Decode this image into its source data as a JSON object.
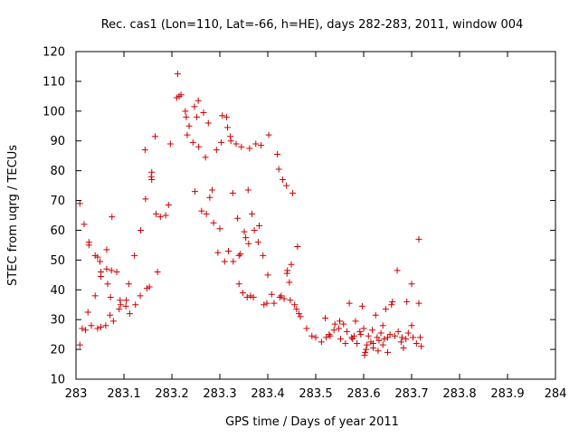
{
  "chart_data": {
    "type": "scatter",
    "title": "Rec. cas1 (Lon=110, Lat=-66, h=HE), days 282-283, 2011, window 004",
    "xlabel": "GPS time / Days of year 2011",
    "ylabel": "STEC from uqrg / TECUs",
    "xlim": [
      283,
      284
    ],
    "ylim": [
      10,
      120
    ],
    "xticks": [
      "283",
      "283.1",
      "283.2",
      "283.3",
      "283.4",
      "283.5",
      "283.6",
      "283.7",
      "283.8",
      "283.9",
      "284"
    ],
    "yticks": [
      "10",
      "20",
      "30",
      "40",
      "50",
      "60",
      "70",
      "80",
      "90",
      "100",
      "110",
      "120"
    ],
    "grid": false,
    "legend": "none",
    "marker": "+",
    "color": "#cc0000",
    "series": [
      {
        "points": [
          [
            283.008,
            21.5
          ],
          [
            283.008,
            69
          ],
          [
            283.017,
            62
          ],
          [
            283.013,
            27
          ],
          [
            283.02,
            26.5
          ],
          [
            283.025,
            32.5
          ],
          [
            283.027,
            55
          ],
          [
            283.027,
            56
          ],
          [
            283.032,
            28
          ],
          [
            283.04,
            38
          ],
          [
            283.04,
            51.5
          ],
          [
            283.045,
            51
          ],
          [
            283.045,
            27
          ],
          [
            283.052,
            27.5
          ],
          [
            283.05,
            49.5
          ],
          [
            283.052,
            44.5
          ],
          [
            283.052,
            46
          ],
          [
            283.062,
            28
          ],
          [
            283.064,
            47
          ],
          [
            283.064,
            53.5
          ],
          [
            283.066,
            42
          ],
          [
            283.071,
            31.5
          ],
          [
            283.072,
            37.5
          ],
          [
            283.075,
            64.5
          ],
          [
            283.074,
            46.5
          ],
          [
            283.078,
            29.5
          ],
          [
            283.085,
            46
          ],
          [
            283.09,
            33.5
          ],
          [
            283.092,
            36.5
          ],
          [
            283.093,
            35
          ],
          [
            283.104,
            34.5
          ],
          [
            283.105,
            36.5
          ],
          [
            283.11,
            42
          ],
          [
            283.112,
            32
          ],
          [
            283.122,
            51.5
          ],
          [
            283.124,
            35
          ],
          [
            283.134,
            38
          ],
          [
            283.135,
            60
          ],
          [
            283.144,
            87
          ],
          [
            283.145,
            70.5
          ],
          [
            283.148,
            40.5
          ],
          [
            283.153,
            41
          ],
          [
            283.157,
            78
          ],
          [
            283.158,
            79.5
          ],
          [
            283.158,
            77
          ],
          [
            283.165,
            91.5
          ],
          [
            283.167,
            65.5
          ],
          [
            283.17,
            46
          ],
          [
            283.176,
            64.5
          ],
          [
            283.187,
            65
          ],
          [
            283.193,
            68.5
          ],
          [
            283.197,
            89
          ],
          [
            283.21,
            104.5
          ],
          [
            283.212,
            112.5
          ],
          [
            283.215,
            105
          ],
          [
            283.219,
            105.5
          ],
          [
            283.228,
            100
          ],
          [
            283.23,
            98
          ],
          [
            283.232,
            92
          ],
          [
            283.236,
            95
          ],
          [
            283.244,
            89.5
          ],
          [
            283.247,
            101.5
          ],
          [
            283.248,
            73
          ],
          [
            283.252,
            98
          ],
          [
            283.255,
            103.5
          ],
          [
            283.256,
            88
          ],
          [
            283.262,
            66.5
          ],
          [
            283.266,
            99.5
          ],
          [
            283.27,
            84.5
          ],
          [
            283.272,
            65.5
          ],
          [
            283.276,
            96
          ],
          [
            283.279,
            71
          ],
          [
            283.284,
            73.5
          ],
          [
            283.287,
            62.5
          ],
          [
            283.293,
            87
          ],
          [
            283.296,
            52.5
          ],
          [
            283.3,
            60.5
          ],
          [
            283.303,
            89.5
          ],
          [
            283.305,
            98.5
          ],
          [
            283.31,
            49.5
          ],
          [
            283.314,
            98
          ],
          [
            283.316,
            94.5
          ],
          [
            283.318,
            53
          ],
          [
            283.322,
            91.5
          ],
          [
            283.323,
            90
          ],
          [
            283.327,
            72.5
          ],
          [
            283.328,
            49.5
          ],
          [
            283.334,
            89
          ],
          [
            283.337,
            64
          ],
          [
            283.34,
            51.5
          ],
          [
            283.34,
            42
          ],
          [
            283.343,
            52
          ],
          [
            283.345,
            88
          ],
          [
            283.348,
            39
          ],
          [
            283.351,
            59.5
          ],
          [
            283.354,
            57.5
          ],
          [
            283.357,
            37.5
          ],
          [
            283.359,
            73.5
          ],
          [
            283.36,
            55.5
          ],
          [
            283.362,
            87.5
          ],
          [
            283.364,
            38
          ],
          [
            283.367,
            65.5
          ],
          [
            283.37,
            37.5
          ],
          [
            283.372,
            60
          ],
          [
            283.375,
            89
          ],
          [
            283.38,
            56
          ],
          [
            283.382,
            61.5
          ],
          [
            283.386,
            88.5
          ],
          [
            283.39,
            51.5
          ],
          [
            283.392,
            35
          ],
          [
            283.398,
            35.5
          ],
          [
            283.4,
            45
          ],
          [
            283.402,
            92
          ],
          [
            283.408,
            38.5
          ],
          [
            283.413,
            35.5
          ],
          [
            283.42,
            85.5
          ],
          [
            283.423,
            80.5
          ],
          [
            283.425,
            37.5
          ],
          [
            283.428,
            38
          ],
          [
            283.431,
            77
          ],
          [
            283.434,
            37
          ],
          [
            283.439,
            75
          ],
          [
            283.44,
            45.5
          ],
          [
            283.441,
            46.5
          ],
          [
            283.445,
            42.5
          ],
          [
            283.447,
            36.5
          ],
          [
            283.449,
            48.5
          ],
          [
            283.452,
            72.5
          ],
          [
            283.456,
            35
          ],
          [
            283.46,
            33.5
          ],
          [
            283.462,
            54.5
          ],
          [
            283.465,
            32
          ],
          [
            283.468,
            31
          ],
          [
            283.481,
            27
          ],
          [
            283.492,
            24.5
          ],
          [
            283.5,
            24
          ],
          [
            283.512,
            22.5
          ],
          [
            283.52,
            30.5
          ],
          [
            283.522,
            24
          ],
          [
            283.528,
            25
          ],
          [
            283.53,
            24.5
          ],
          [
            283.538,
            26.5
          ],
          [
            283.54,
            28.5
          ],
          [
            283.548,
            27
          ],
          [
            283.55,
            29.5
          ],
          [
            283.552,
            23.5
          ],
          [
            283.558,
            28.5
          ],
          [
            283.562,
            22
          ],
          [
            283.565,
            26
          ],
          [
            283.57,
            35.5
          ],
          [
            283.575,
            24
          ],
          [
            283.577,
            23.5
          ],
          [
            283.58,
            24.5
          ],
          [
            283.583,
            29.5
          ],
          [
            283.586,
            22
          ],
          [
            283.592,
            26
          ],
          [
            283.594,
            25
          ],
          [
            283.597,
            34.5
          ],
          [
            283.6,
            27
          ],
          [
            283.602,
            18
          ],
          [
            283.603,
            19
          ],
          [
            283.605,
            20
          ],
          [
            283.607,
            21.5
          ],
          [
            283.61,
            24.5
          ],
          [
            283.615,
            22.5
          ],
          [
            283.618,
            26.5
          ],
          [
            283.62,
            20.5
          ],
          [
            283.62,
            22
          ],
          [
            283.625,
            31.5
          ],
          [
            283.628,
            24
          ],
          [
            283.63,
            19.5
          ],
          [
            283.632,
            23
          ],
          [
            283.636,
            25.5
          ],
          [
            283.64,
            28
          ],
          [
            283.64,
            21.5
          ],
          [
            283.643,
            23.5
          ],
          [
            283.646,
            33.5
          ],
          [
            283.65,
            24
          ],
          [
            283.65,
            19
          ],
          [
            283.655,
            25
          ],
          [
            283.658,
            35
          ],
          [
            283.66,
            36
          ],
          [
            283.665,
            24.5
          ],
          [
            283.67,
            46.5
          ],
          [
            283.672,
            26
          ],
          [
            283.678,
            22.5
          ],
          [
            283.68,
            24
          ],
          [
            283.683,
            20.5
          ],
          [
            283.688,
            23.5
          ],
          [
            283.69,
            36
          ],
          [
            283.693,
            25.5
          ],
          [
            283.7,
            42
          ],
          [
            283.7,
            28
          ],
          [
            283.703,
            24
          ],
          [
            283.71,
            22
          ],
          [
            283.715,
            35.5
          ],
          [
            283.715,
            57
          ],
          [
            283.718,
            24
          ],
          [
            283.72,
            21
          ]
        ]
      }
    ]
  }
}
